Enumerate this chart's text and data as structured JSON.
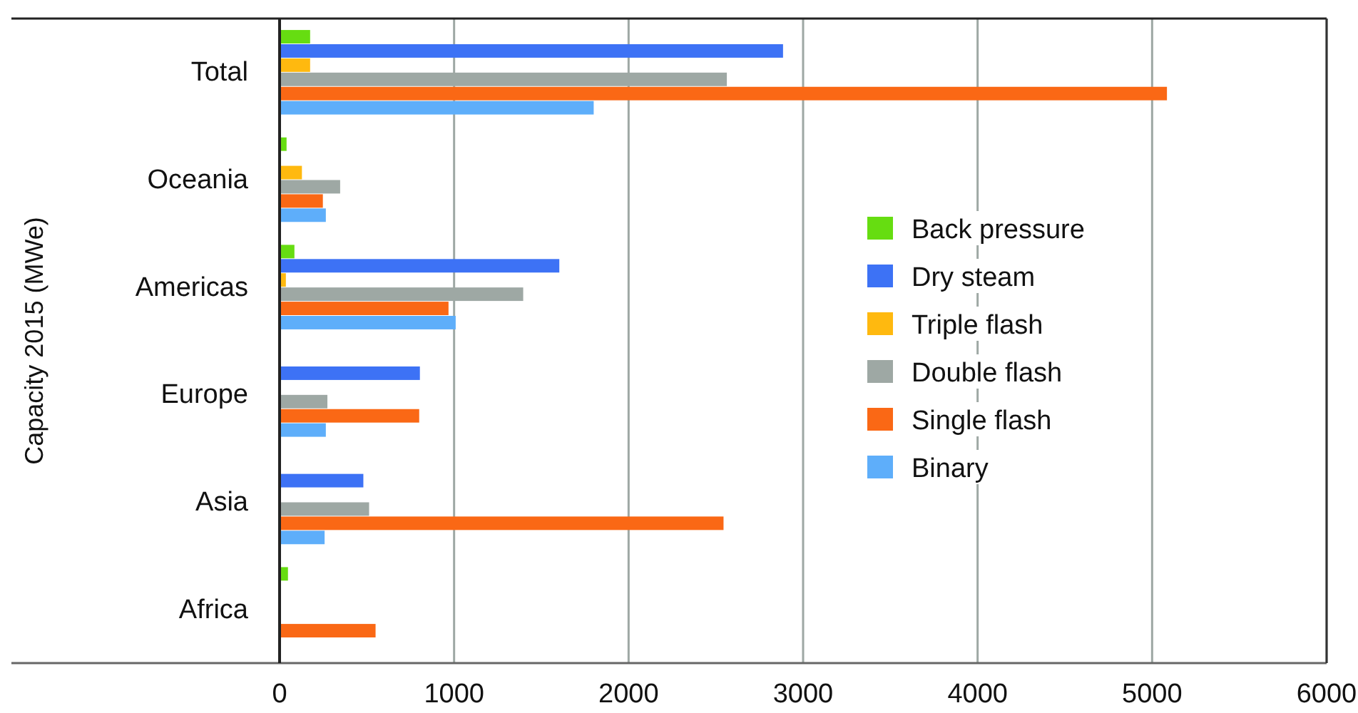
{
  "chart_data": {
    "type": "bar",
    "orientation": "horizontal",
    "ylabel": "Capacity 2015 (MWe)",
    "categories": [
      "Total",
      "Oceania",
      "Americas",
      "Europe",
      "Asia",
      "Africa"
    ],
    "series": [
      {
        "name": "Back pressure",
        "color": "#66dd11",
        "values": [
          175,
          40,
          85,
          null,
          null,
          48
        ]
      },
      {
        "name": "Dry steam",
        "color": "#3d72f5",
        "values": [
          2885,
          null,
          1603,
          804,
          480,
          null
        ]
      },
      {
        "name": "Triple flash",
        "color": "#ffb90f",
        "values": [
          175,
          128,
          36,
          null,
          null,
          null
        ]
      },
      {
        "name": "Double flash",
        "color": "#9ea8a4",
        "values": [
          2563,
          347,
          1396,
          274,
          513,
          null
        ]
      },
      {
        "name": "Single flash",
        "color": "#fa6815",
        "values": [
          5085,
          248,
          968,
          800,
          2544,
          550
        ]
      },
      {
        "name": "Binary",
        "color": "#5eaefa",
        "values": [
          1800,
          265,
          1009,
          265,
          258,
          null
        ]
      }
    ],
    "xlim": [
      0,
      6000
    ],
    "xticks": [
      0,
      1000,
      2000,
      3000,
      4000,
      5000,
      6000
    ],
    "grid": "x",
    "legend": "right"
  }
}
